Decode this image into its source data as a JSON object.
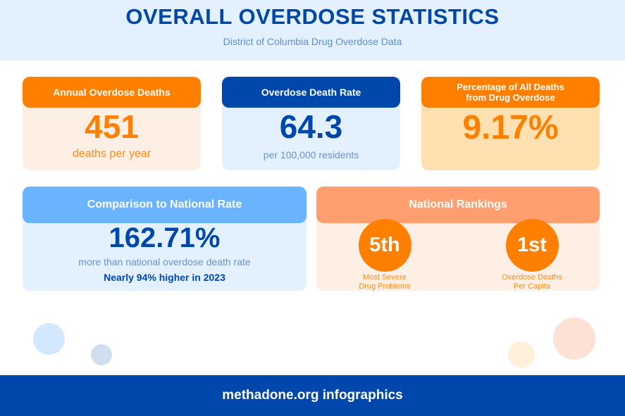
{
  "header": {
    "title": "OVERALL OVERDOSE STATISTICS",
    "subtitle": "District of Columbia Drug Overdose Data"
  },
  "cards": {
    "annual": {
      "title": "Annual Overdose Deaths",
      "value": "451",
      "sub": "deaths per year"
    },
    "rate": {
      "title": "Overdose Death Rate",
      "value": "64.3",
      "sub": "per 100,000 residents"
    },
    "percentage": {
      "title_line1": "Percentage of All Deaths",
      "title_line2": "from Drug Overdose",
      "value": "9.17%"
    },
    "comparison": {
      "title": "Comparison to National Rate",
      "value": "162.71%",
      "sub": "more than national overdose death rate",
      "note": "Nearly 94% higher in 2023"
    },
    "rankings": {
      "title": "National Rankings",
      "items": [
        {
          "rank": "5th",
          "line1": "Most Severe",
          "line2": "Drug Problems"
        },
        {
          "rank": "1st",
          "line1": "Overdose Deaths",
          "line2": "Per Capita"
        }
      ]
    }
  },
  "footer": {
    "text": "methadone.org infographics"
  },
  "colors": {
    "blue": "#0047ab",
    "orange": "#ff7f00",
    "light_blue": "#6ab4ff",
    "salmon": "#ff9e6e"
  }
}
